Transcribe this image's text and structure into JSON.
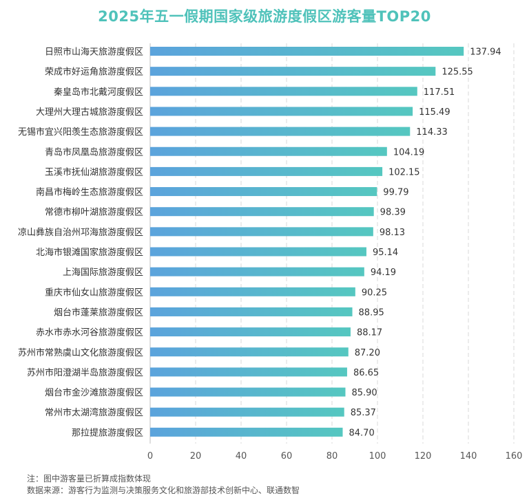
{
  "chart_data": {
    "type": "bar",
    "orientation": "horizontal",
    "title": "2025年五一假期国家级旅游度假区游客量TOP20",
    "categories": [
      "日照市山海天旅游度假区",
      "荣成市好运角旅游度假区",
      "秦皇岛市北戴河度假区",
      "大理州大理古城旅游度假区",
      "无锡市宜兴阳羡生态旅游度假区",
      "青岛市凤凰岛旅游度假区",
      "玉溪市抚仙湖旅游度假区",
      "南昌市梅岭生态旅游度假区",
      "常德市柳叶湖旅游度假区",
      "凉山彝族自治州邛海旅游度假区",
      "北海市银滩国家旅游度假区",
      "上海国际旅游度假区",
      "重庆市仙女山旅游度假区",
      "烟台市蓬莱旅游度假区",
      "赤水市赤水河谷旅游度假区",
      "苏州市常熟虞山文化旅游度假区",
      "苏州市阳澄湖半岛旅游度假区",
      "烟台市金沙滩旅游度假区",
      "常州市太湖湾旅游度假区",
      "那拉提旅游度假区"
    ],
    "values": [
      137.94,
      125.55,
      117.51,
      115.49,
      114.33,
      104.19,
      102.15,
      99.79,
      98.39,
      98.13,
      95.14,
      94.19,
      90.25,
      88.95,
      88.17,
      87.2,
      86.65,
      85.9,
      85.37,
      84.7
    ],
    "value_labels": [
      "137.94",
      "125.55",
      "117.51",
      "115.49",
      "114.33",
      "104.19",
      "102.15",
      "99.79",
      "98.39",
      "98.13",
      "95.14",
      "94.19",
      "90.25",
      "88.95",
      "88.17",
      "87.20",
      "86.65",
      "85.90",
      "85.37",
      "84.70"
    ],
    "xlim": [
      0,
      160
    ],
    "xticks": [
      0,
      20,
      40,
      60,
      80,
      100,
      120,
      140,
      160
    ],
    "grid": "vertical-dashed",
    "colors": {
      "bar_start": "#5ba3dc",
      "bar_end": "#55c7c0",
      "title": "#4fc2ba"
    }
  },
  "notes": {
    "note": "注：图中游客量已折算成指数体现",
    "source": "数据来源：游客行为监测与决策服务文化和旅游部技术创新中心、联通数智"
  }
}
